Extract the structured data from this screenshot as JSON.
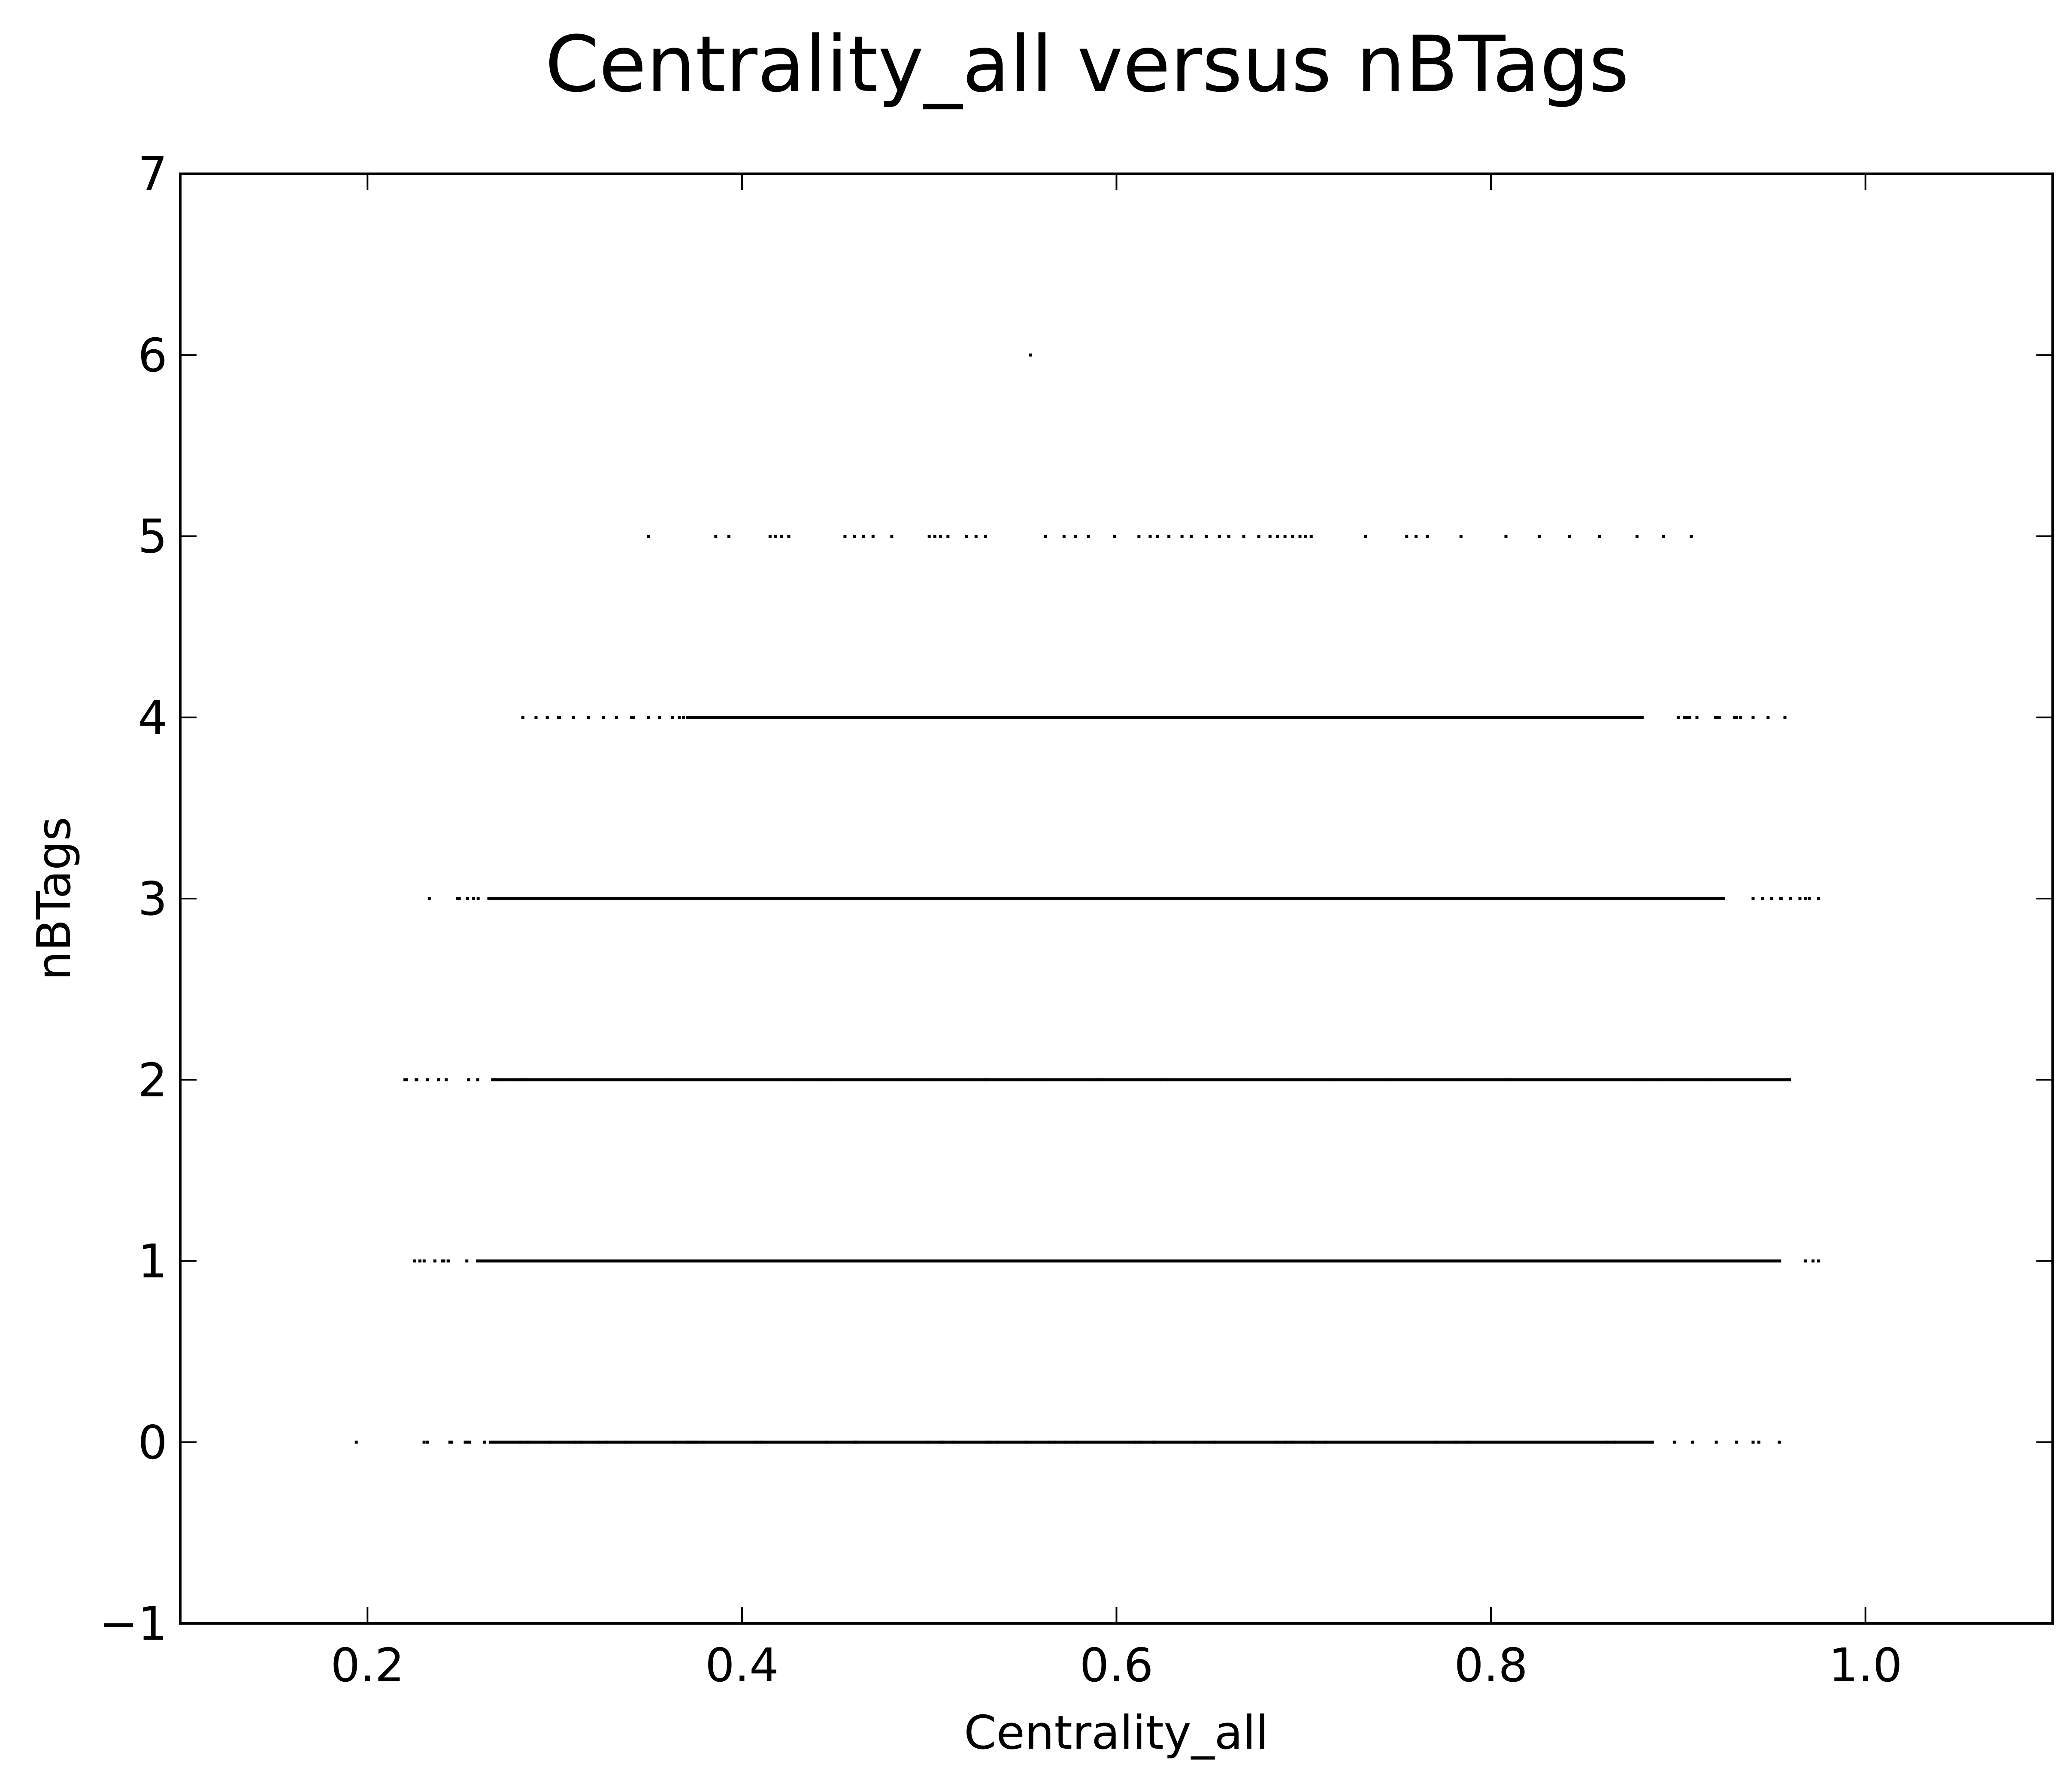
{
  "chart_data": {
    "type": "scatter",
    "title": "Centrality_all versus nBTags",
    "xlabel": "Centrality_all",
    "ylabel": "nBTags",
    "xlim": [
      0.1,
      1.1
    ],
    "ylim": [
      -1,
      7
    ],
    "xticks": [
      0.2,
      0.4,
      0.6,
      0.8,
      1.0
    ],
    "xtick_labels": [
      "0.2",
      "0.4",
      "0.6",
      "0.8",
      "1.0"
    ],
    "yticks": [
      -1,
      0,
      1,
      2,
      3,
      4,
      5,
      6,
      7
    ],
    "ytick_labels": [
      "−1",
      "0",
      "1",
      "2",
      "3",
      "4",
      "5",
      "6",
      "7"
    ],
    "grid": false,
    "marker_color": "#000000",
    "series": [
      {
        "values_note_none": "",
        "points": [
          {
            "nBTags": 0,
            "x_min": 0.194,
            "x_max": 0.954,
            "dense_min": 0.265,
            "dense_max": 0.887,
            "isolated": [
              0.194,
              0.244,
              0.245,
              0.931,
              0.94,
              0.954
            ]
          },
          {
            "nBTags": 1,
            "x_min": 0.225,
            "x_max": 0.975,
            "dense_min": 0.258,
            "dense_max": 0.955,
            "isolated": [
              0.225,
              0.228,
              0.236,
              0.24,
              0.972,
              0.975
            ]
          },
          {
            "nBTags": 2,
            "x_min": 0.22,
            "x_max": 0.967,
            "dense_min": 0.266,
            "dense_max": 0.96,
            "isolated": [
              0.22,
              0.226,
              0.232,
              0.238,
              0.254
            ]
          },
          {
            "nBTags": 3,
            "x_min": 0.233,
            "x_max": 0.975,
            "dense_min": 0.264,
            "dense_max": 0.925,
            "isolated": [
              0.233,
              0.248,
              0.94,
              0.945,
              0.95,
              0.955,
              0.96,
              0.965,
              0.97,
              0.975
            ]
          },
          {
            "nBTags": 4,
            "x_min": 0.283,
            "x_max": 0.957,
            "dense_min": 0.37,
            "dense_max": 0.88,
            "isolated": [
              0.283,
              0.29,
              0.296,
              0.302,
              0.31,
              0.318,
              0.326,
              0.333,
              0.342,
              0.35,
              0.356,
              0.363,
              0.9,
              0.91,
              0.92,
              0.93,
              0.94,
              0.948,
              0.957
            ]
          },
          {
            "nBTags": 5,
            "x_min": 0.35,
            "x_max": 0.907,
            "dense_min": 0,
            "dense_max": 0,
            "isolated": [
              0.35,
              0.386,
              0.393,
              0.415,
              0.418,
              0.421,
              0.425,
              0.455,
              0.46,
              0.465,
              0.47,
              0.48,
              0.5,
              0.503,
              0.506,
              0.51,
              0.52,
              0.525,
              0.53,
              0.562,
              0.572,
              0.578,
              0.585,
              0.599,
              0.612,
              0.618,
              0.622,
              0.628,
              0.635,
              0.64,
              0.648,
              0.655,
              0.66,
              0.668,
              0.676,
              0.682,
              0.686,
              0.69,
              0.694,
              0.698,
              0.701,
              0.704,
              0.733,
              0.755,
              0.76,
              0.766,
              0.784,
              0.808,
              0.826,
              0.842,
              0.858,
              0.878,
              0.892,
              0.907
            ]
          },
          {
            "nBTags": 6,
            "x_min": 0.554,
            "x_max": 0.554,
            "dense_min": 0,
            "dense_max": 0,
            "isolated": [
              0.554
            ]
          }
        ]
      }
    ]
  }
}
